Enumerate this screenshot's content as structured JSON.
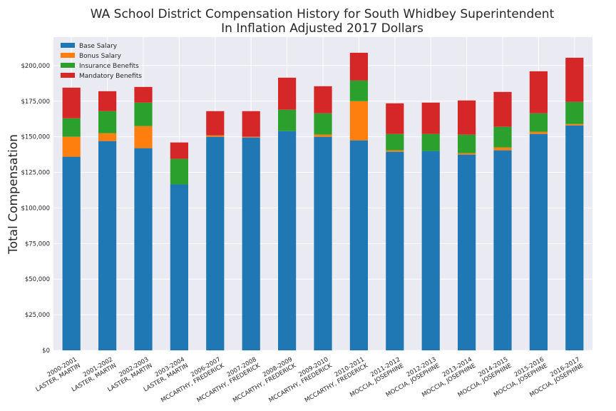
{
  "chart_data": {
    "type": "bar",
    "stacked": true,
    "title": "WA School District Compensation History for South Whidbey Superintendent",
    "subtitle": "In Inflation Adjusted 2017 Dollars",
    "xlabel": "",
    "ylabel": "Total Compensation",
    "ylim": [
      0,
      220000
    ],
    "yticks": [
      0,
      25000,
      50000,
      75000,
      100000,
      125000,
      150000,
      175000,
      200000
    ],
    "ytick_labels": [
      "$0",
      "$25,000",
      "$50,000",
      "$75,000",
      "$100,000",
      "$125,000",
      "$150,000",
      "$175,000",
      "$200,000"
    ],
    "grid": true,
    "legend_position": "top-left",
    "categories": [
      [
        "2000-2001",
        "LASTER, MARTIN"
      ],
      [
        "2001-2002",
        "LASTER, MARTIN"
      ],
      [
        "2002-2003",
        "LASTER, MARTIN"
      ],
      [
        "2003-2004",
        "LASTER, MARTIN"
      ],
      [
        "2006-2007",
        "MCCARTHY, FREDERICK"
      ],
      [
        "2007-2008",
        "MCCARTHY, FREDERICK"
      ],
      [
        "2008-2009",
        "MCCARTHY, FREDERICK"
      ],
      [
        "2009-2010",
        "MCCARTHY, FREDERICK"
      ],
      [
        "2010-2011",
        "MCCARTHY, FREDERICK"
      ],
      [
        "2011-2012",
        "MOCCIA, JOSEPHINE"
      ],
      [
        "2012-2013",
        "MOCCIA, JOSEPHINE"
      ],
      [
        "2013-2014",
        "MOCCIA, JOSEPHINE"
      ],
      [
        "2014-2015",
        "MOCCIA, JOSEPHINE"
      ],
      [
        "2015-2016",
        "MOCCIA, JOSEPHINE"
      ],
      [
        "2016-2017",
        "MOCCIA, JOSEPHINE"
      ]
    ],
    "series": [
      {
        "name": "Base Salary",
        "color": "#1f77b4",
        "values": [
          136000,
          147000,
          142000,
          116500,
          150000,
          149500,
          154000,
          150000,
          147500,
          139500,
          140000,
          137500,
          140500,
          152000,
          158000
        ]
      },
      {
        "name": "Bonus Salary",
        "color": "#ff7f0e",
        "values": [
          14000,
          5500,
          15500,
          0,
          1000,
          500,
          0,
          1500,
          27500,
          1000,
          0,
          1000,
          2000,
          1500,
          1000
        ]
      },
      {
        "name": "Insurance Benefits",
        "color": "#2ca02c",
        "values": [
          13000,
          15500,
          16500,
          18000,
          0,
          0,
          15000,
          15000,
          14500,
          11500,
          12000,
          13000,
          14500,
          13000,
          15500
        ]
      },
      {
        "name": "Mandatory Benefits",
        "color": "#d62728",
        "values": [
          21500,
          14000,
          11000,
          11500,
          17000,
          18000,
          22500,
          19000,
          19500,
          21500,
          22000,
          24000,
          24500,
          29500,
          31000
        ]
      }
    ]
  }
}
